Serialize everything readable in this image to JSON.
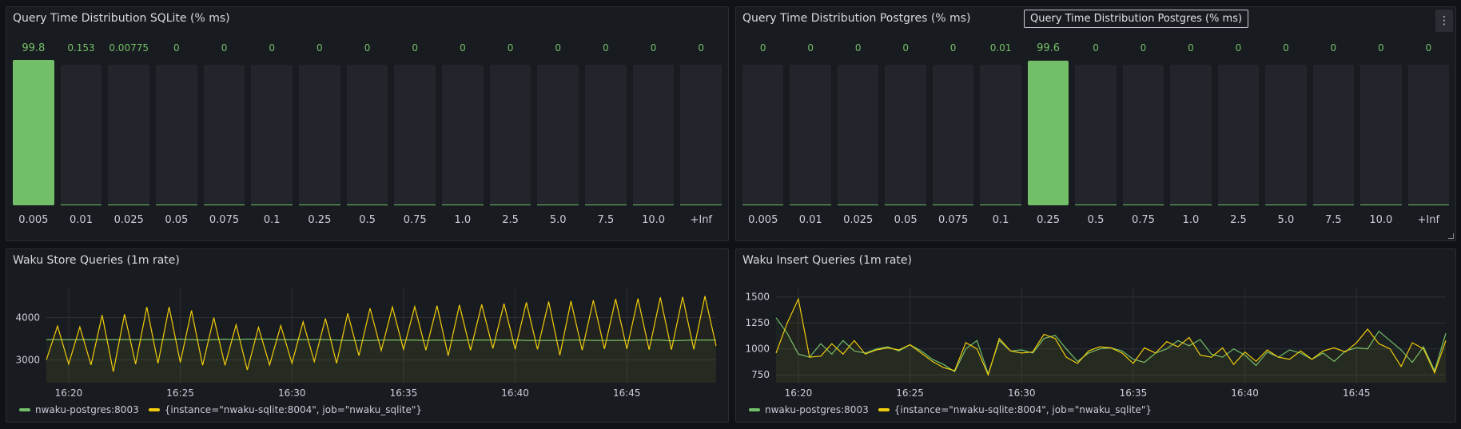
{
  "colors": {
    "green": "#73bf69",
    "yellow": "#f2cc0c"
  },
  "sqlite_dist": {
    "title": "Query Time Distribution SQLite (% ms)",
    "buckets": [
      "0.005",
      "0.01",
      "0.025",
      "0.05",
      "0.075",
      "0.1",
      "0.25",
      "0.5",
      "0.75",
      "1.0",
      "2.5",
      "5.0",
      "7.5",
      "10.0",
      "+Inf"
    ],
    "values": [
      "99.8",
      "0.153",
      "0.00775",
      "0",
      "0",
      "0",
      "0",
      "0",
      "0",
      "0",
      "0",
      "0",
      "0",
      "0",
      "0"
    ],
    "percent": [
      99.8,
      0.153,
      0.00775,
      0,
      0,
      0,
      0,
      0,
      0,
      0,
      0,
      0,
      0,
      0,
      0
    ]
  },
  "postgres_dist": {
    "title": "Query Time Distribution Postgres (% ms)",
    "tooltip": "Query Time Distribution Postgres (% ms)",
    "menu_icon": "kebab-menu-icon",
    "buckets": [
      "0.005",
      "0.01",
      "0.025",
      "0.05",
      "0.075",
      "0.1",
      "0.25",
      "0.5",
      "0.75",
      "1.0",
      "2.5",
      "5.0",
      "7.5",
      "10.0",
      "+Inf"
    ],
    "values": [
      "0",
      "0",
      "0",
      "0",
      "0",
      "0.01",
      "99.6",
      "0",
      "0",
      "0",
      "0",
      "0",
      "0",
      "0",
      "0"
    ],
    "percent": [
      0,
      0,
      0,
      0,
      0,
      0.01,
      99.6,
      0,
      0,
      0,
      0,
      0,
      0,
      0,
      0
    ]
  },
  "chart_data": [
    {
      "type": "line",
      "title": "Waku Store Queries (1m rate)",
      "x_start": "16:19",
      "x_end": "16:49",
      "x_step_seconds": 30,
      "xticks": [
        "16:20",
        "16:25",
        "16:30",
        "16:35",
        "16:40",
        "16:45"
      ],
      "yticks": [
        3000,
        4000
      ],
      "ylim": [
        2460,
        4710
      ],
      "grid": true,
      "legend": "bottom",
      "series": [
        {
          "name": "nwaku-postgres:8003",
          "color": "#73bf69",
          "values": [
            3480,
            3480,
            3480,
            3480,
            3480,
            3480,
            3480,
            3480,
            3480,
            3480,
            3480,
            3480,
            3490,
            3480,
            3470,
            3480,
            3490,
            3480,
            3490,
            3490,
            3490,
            3480,
            3480,
            3480,
            3480,
            3480,
            3470,
            3460,
            3460,
            3460,
            3470,
            3470,
            3470,
            3470,
            3460,
            3470,
            3460,
            3460,
            3470,
            3470,
            3470,
            3470,
            3470,
            3460,
            3460,
            3460,
            3460,
            3470,
            3470,
            3460,
            3460,
            3460,
            3460,
            3470,
            3470,
            3470,
            3450,
            3460,
            3470,
            3470,
            3470
          ]
        },
        {
          "name": "{instance=\"nwaku-sqlite:8004\", job=\"nwaku_sqlite\"}",
          "color": "#f2cc0c",
          "values": [
            3000,
            3800,
            2900,
            3780,
            2880,
            4060,
            2720,
            4080,
            2900,
            4250,
            2920,
            4250,
            2940,
            4170,
            2870,
            4000,
            2870,
            3830,
            2760,
            3770,
            2880,
            3810,
            2920,
            3900,
            2960,
            3980,
            2920,
            4100,
            3100,
            4220,
            3220,
            4250,
            3250,
            4260,
            3230,
            4280,
            3100,
            4300,
            3230,
            4310,
            3270,
            4330,
            3250,
            4360,
            3250,
            4380,
            3110,
            4390,
            3230,
            4410,
            3260,
            4440,
            3260,
            4450,
            3240,
            4480,
            3240,
            4490,
            3250,
            4510,
            3330
          ]
        }
      ]
    },
    {
      "type": "line",
      "title": "Waku Insert Queries (1m rate)",
      "x_start": "16:19",
      "x_end": "16:49",
      "x_step_seconds": 30,
      "xticks": [
        "16:20",
        "16:25",
        "16:30",
        "16:35",
        "16:40",
        "16:45"
      ],
      "yticks": [
        750,
        1000,
        1250,
        1500
      ],
      "ylim": [
        675,
        1590
      ],
      "grid": true,
      "legend": "bottom",
      "series": [
        {
          "name": "nwaku-postgres:8003",
          "color": "#73bf69",
          "values": [
            1300,
            1150,
            950,
            920,
            1050,
            950,
            1080,
            980,
            960,
            1000,
            1020,
            980,
            1040,
            980,
            900,
            850,
            780,
            1000,
            1080,
            760,
            1080,
            980,
            990,
            960,
            1100,
            1130,
            1000,
            880,
            960,
            1000,
            1010,
            980,
            900,
            870,
            960,
            1000,
            1080,
            1030,
            1090,
            950,
            920,
            1000,
            940,
            840,
            970,
            920,
            990,
            960,
            900,
            960,
            880,
            980,
            1010,
            1000,
            1170,
            1080,
            990,
            870,
            1020,
            790,
            1150
          ]
        },
        {
          "name": "{instance=\"nwaku-sqlite:8004\", job=\"nwaku_sqlite\"}",
          "color": "#f2cc0c",
          "values": [
            960,
            1250,
            1480,
            920,
            930,
            1050,
            950,
            1080,
            950,
            990,
            1010,
            990,
            1040,
            960,
            880,
            820,
            790,
            1060,
            1000,
            750,
            1100,
            980,
            960,
            970,
            1140,
            1100,
            920,
            860,
            980,
            1020,
            1010,
            960,
            860,
            1010,
            960,
            1070,
            1020,
            1110,
            940,
            920,
            1010,
            850,
            970,
            880,
            990,
            920,
            900,
            980,
            900,
            980,
            1010,
            970,
            1060,
            1190,
            1050,
            1000,
            830,
            1060,
            1000,
            770,
            1080
          ]
        }
      ]
    }
  ]
}
